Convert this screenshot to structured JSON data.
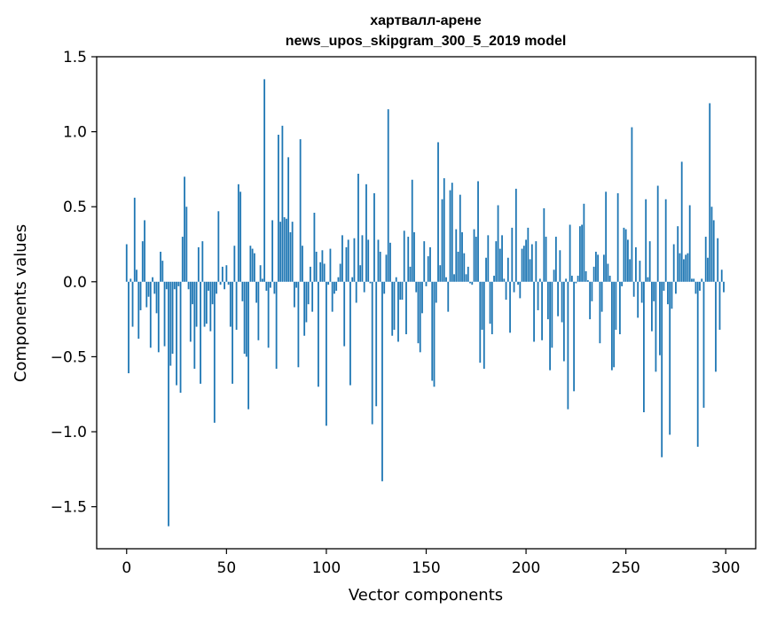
{
  "chart_data": {
    "type": "bar",
    "title_line1": "хартвалл-арене",
    "title_line2": "news_upos_skipgram_300_5_2019 model",
    "xlabel": "Vector components",
    "ylabel": "Components values",
    "xlim": [
      -15,
      315
    ],
    "ylim": [
      -1.78,
      1.5
    ],
    "xticks": [
      0,
      50,
      100,
      150,
      200,
      250,
      300
    ],
    "xtick_labels": [
      "0",
      "50",
      "100",
      "150",
      "200",
      "250",
      "300"
    ],
    "yticks": [
      -1.5,
      -1.0,
      -0.5,
      0.0,
      0.5,
      1.0,
      1.5
    ],
    "ytick_labels": [
      "−1.5",
      "−1.0",
      "−0.5",
      "0.0",
      "0.5",
      "1.0",
      "1.5"
    ],
    "bar_color": "#1f77b4",
    "values": [
      0.25,
      -0.61,
      0.02,
      -0.3,
      0.56,
      0.08,
      -0.38,
      -0.19,
      0.27,
      0.41,
      -0.17,
      -0.1,
      -0.44,
      0.03,
      -0.08,
      -0.21,
      -0.47,
      0.2,
      0.14,
      -0.43,
      -0.05,
      -1.63,
      -0.56,
      -0.48,
      -0.05,
      -0.69,
      -0.03,
      -0.74,
      0.3,
      0.7,
      0.5,
      -0.05,
      -0.4,
      -0.15,
      -0.58,
      -0.3,
      0.23,
      -0.68,
      0.27,
      -0.3,
      -0.28,
      -0.06,
      -0.33,
      -0.15,
      -0.94,
      -0.08,
      0.47,
      -0.02,
      0.1,
      -0.05,
      0.11,
      -0.02,
      -0.3,
      -0.68,
      0.24,
      -0.32,
      0.65,
      0.6,
      -0.13,
      -0.48,
      -0.5,
      -0.85,
      0.24,
      0.22,
      0.19,
      -0.14,
      -0.39,
      0.11,
      0.02,
      1.35,
      -0.06,
      -0.44,
      -0.04,
      0.41,
      -0.08,
      -0.58,
      0.98,
      0.4,
      1.04,
      0.43,
      0.42,
      0.83,
      0.33,
      0.4,
      -0.17,
      -0.04,
      -0.57,
      0.95,
      0.24,
      -0.36,
      -0.27,
      -0.15,
      0.1,
      -0.2,
      0.46,
      0.2,
      -0.7,
      0.13,
      0.21,
      0.12,
      -0.96,
      -0.02,
      0.22,
      -0.2,
      -0.08,
      -0.06,
      0.03,
      0.12,
      0.31,
      -0.43,
      0.23,
      0.28,
      -0.69,
      0.03,
      0.29,
      -0.14,
      0.72,
      0.11,
      0.31,
      -0.07,
      0.65,
      0.28,
      -0.01,
      -0.95,
      0.59,
      -0.83,
      0.28,
      0.2,
      -1.33,
      -0.08,
      0.18,
      1.15,
      0.26,
      -0.36,
      -0.32,
      0.03,
      -0.4,
      -0.12,
      -0.12,
      0.34,
      -0.35,
      0.3,
      0.1,
      0.68,
      0.33,
      -0.07,
      -0.41,
      -0.47,
      -0.21,
      0.27,
      -0.03,
      0.17,
      0.23,
      -0.66,
      -0.7,
      -0.14,
      0.93,
      0.11,
      0.55,
      0.69,
      0.03,
      -0.2,
      0.61,
      0.66,
      0.05,
      0.35,
      0.2,
      0.58,
      0.33,
      0.19,
      0.05,
      0.1,
      -0.01,
      -0.02,
      0.35,
      0.3,
      0.67,
      -0.54,
      -0.32,
      -0.58,
      0.16,
      0.31,
      -0.28,
      -0.35,
      0.04,
      0.27,
      0.51,
      0.22,
      0.31,
      0.02,
      -0.12,
      0.16,
      -0.34,
      0.36,
      -0.07,
      0.62,
      -0.02,
      -0.11,
      0.22,
      0.24,
      0.28,
      0.36,
      0.15,
      0.25,
      -0.4,
      0.27,
      -0.19,
      0.02,
      -0.39,
      0.49,
      0.3,
      -0.25,
      -0.59,
      -0.44,
      0.08,
      0.3,
      -0.23,
      0.21,
      -0.27,
      -0.53,
      0.02,
      -0.85,
      0.38,
      0.04,
      -0.73,
      -0.01,
      0.04,
      0.37,
      0.38,
      0.52,
      0.07,
      0.01,
      -0.25,
      -0.13,
      0.1,
      0.2,
      0.18,
      -0.41,
      -0.2,
      0.18,
      0.6,
      0.12,
      0.04,
      -0.59,
      -0.57,
      -0.32,
      0.59,
      -0.35,
      -0.03,
      0.36,
      0.35,
      0.28,
      0.15,
      1.03,
      -0.1,
      0.23,
      -0.24,
      0.14,
      -0.14,
      -0.87,
      0.55,
      0.03,
      0.27,
      -0.33,
      -0.13,
      -0.6,
      0.64,
      -0.49,
      -1.17,
      -0.06,
      0.55,
      -0.15,
      -1.02,
      -0.18,
      0.25,
      -0.08,
      0.37,
      0.19,
      0.8,
      0.15,
      0.18,
      0.19,
      0.51,
      0.02,
      0.02,
      -0.08,
      -1.1,
      -0.06,
      0.02,
      -0.84,
      0.3,
      0.16,
      1.19,
      0.5,
      0.41,
      -0.6,
      0.29,
      -0.32,
      0.08,
      -0.07
    ]
  }
}
